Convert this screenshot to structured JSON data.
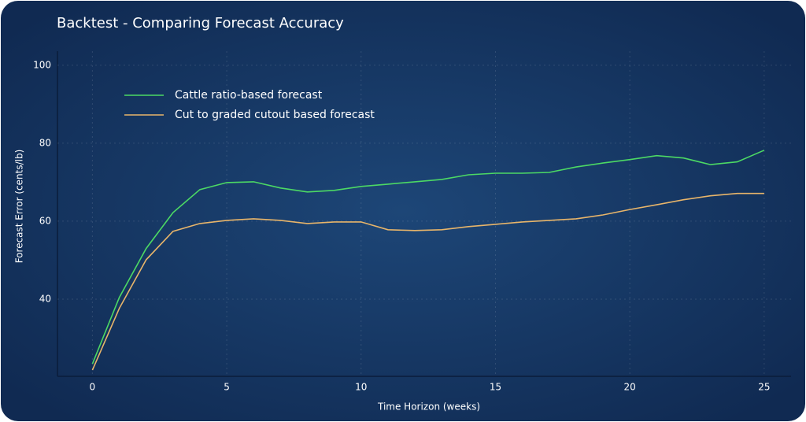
{
  "chart_data": {
    "type": "line",
    "title": "Backtest - Comparing Forecast Accuracy",
    "x_label": "Time Horizon (weeks)",
    "y_label": "Forecast Error (cents/lb)",
    "x": [
      0,
      1,
      2,
      3,
      4,
      5,
      6,
      7,
      8,
      9,
      10,
      11,
      12,
      13,
      14,
      15,
      16,
      17,
      18,
      19,
      20,
      21,
      22,
      23,
      24,
      25
    ],
    "series": [
      {
        "name": "Cattle ratio-based forecast",
        "color": "#4cd964",
        "values": [
          23.4,
          40.4,
          53,
          62.2,
          68.1,
          69.9,
          70.1,
          68.5,
          67.5,
          67.9,
          68.9,
          69.5,
          70.1,
          70.7,
          71.9,
          72.3,
          72.3,
          72.5,
          73.9,
          74.9,
          75.8,
          76.8,
          76.2,
          74.5,
          75.2,
          78.2
        ]
      },
      {
        "name": "Cut to graded cutout based forecast",
        "color": "#e8b56a",
        "values": [
          21.8,
          37.6,
          50.1,
          57.4,
          59.4,
          60.2,
          60.6,
          60.2,
          59.4,
          59.8,
          59.8,
          57.8,
          57.6,
          57.8,
          58.6,
          59.2,
          59.8,
          60.2,
          60.6,
          61.6,
          63,
          64.2,
          65.5,
          66.5,
          67.1,
          67.1
        ]
      }
    ],
    "xlim": [
      -1.3,
      26
    ],
    "ylim": [
      20.2,
      103.6
    ],
    "xticks": [
      0,
      5,
      10,
      15,
      20,
      25
    ],
    "yticks": [
      40,
      60,
      80,
      100
    ],
    "grid": true,
    "legend": "upper left"
  }
}
